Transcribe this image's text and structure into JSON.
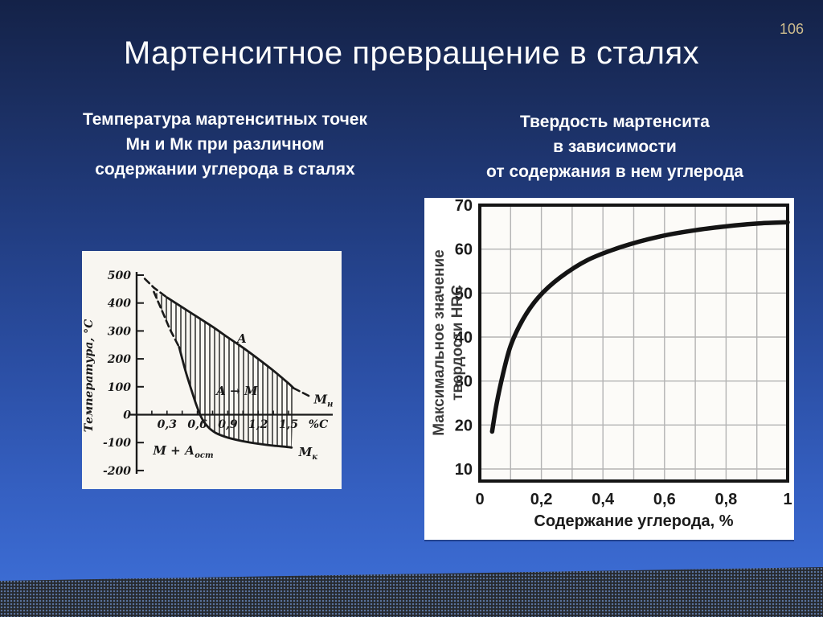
{
  "slide": {
    "title": "Мартенситное превращение в сталях",
    "page_number": "106"
  },
  "captions": {
    "left": [
      "Температура мартенситных точек",
      "Мн и Мк при различном",
      "содержании углерода в сталях"
    ],
    "right": [
      "Твердость мартенсита",
      "в зависимости",
      "от содержания в нем углерода"
    ]
  },
  "colors": {
    "background_top": "#142248",
    "background_bottom": "#3f71d9",
    "band": "#26292e",
    "band_dot": "#6482b4",
    "page_number": "#cfbd8e",
    "text": "#ffffff",
    "ink": "#1a1a1a",
    "grid": "#b3b3b3",
    "label_gray": "#3c3c3c"
  },
  "chart_data": [
    {
      "type": "line",
      "title": "Температура мартенситных точек Мн и Мк при различном содержании углерода в сталях",
      "style": "scanned hand-drawn figure, hatched region between curves",
      "xlabel": "%С",
      "ylabel": "Температура, °С",
      "xlim": [
        0,
        1.9
      ],
      "ylim": [
        -200,
        500
      ],
      "x_ticks": [
        0.3,
        0.6,
        0.9,
        1.2,
        1.5
      ],
      "x_tick_labels": [
        "0,3",
        "0,6",
        "0,9",
        "1,2",
        "1,5"
      ],
      "y_ticks": [
        500,
        400,
        300,
        200,
        100,
        0,
        -100,
        -200
      ],
      "grid": false,
      "series": [
        {
          "name": "Мн",
          "label": {
            "text": "М",
            "sub": "н",
            "x": 1.75,
            "y": 40
          },
          "dashed_start": [
            [
              0.08,
              487
            ],
            [
              0.17,
              455
            ],
            [
              0.3,
              420
            ]
          ],
          "solid": [
            [
              0.3,
              420
            ],
            [
              0.45,
              385
            ],
            [
              0.6,
              350
            ],
            [
              0.75,
              315
            ],
            [
              0.9,
              277
            ],
            [
              1.05,
              240
            ],
            [
              1.2,
              200
            ],
            [
              1.35,
              158
            ],
            [
              1.5,
              112
            ],
            [
              1.55,
              95
            ]
          ],
          "dashed_end": [
            [
              1.55,
              95
            ],
            [
              1.73,
              62
            ]
          ]
        },
        {
          "name": "Мк",
          "label": {
            "text": "М",
            "sub": "к",
            "x": 1.6,
            "y": -148
          },
          "dashed_start": [
            [
              0.17,
              440
            ],
            [
              0.25,
              373
            ],
            [
              0.33,
              305
            ],
            [
              0.42,
              242
            ]
          ],
          "solid": [
            [
              0.42,
              242
            ],
            [
              0.48,
              160
            ],
            [
              0.54,
              90
            ],
            [
              0.59,
              35
            ],
            [
              0.64,
              -10
            ],
            [
              0.7,
              -42
            ],
            [
              0.78,
              -65
            ],
            [
              0.9,
              -82
            ],
            [
              1.05,
              -95
            ],
            [
              1.2,
              -104
            ],
            [
              1.35,
              -111
            ],
            [
              1.5,
              -116
            ],
            [
              1.53,
              -118
            ]
          ],
          "dashed_end": []
        }
      ],
      "region_labels": [
        {
          "text": "А",
          "x": 1.04,
          "y": 258
        },
        {
          "text": "А → М",
          "x": 0.99,
          "y": 71
        },
        {
          "text": "М + А",
          "sub": "ост",
          "x": 0.46,
          "y": -143
        }
      ],
      "hatched_between": [
        "Мн",
        "Мк"
      ]
    },
    {
      "type": "line",
      "title": "Твердость мартенсита в зависимости от содержания в нем углерода",
      "xlabel": "Содержание углерода, %",
      "ylabel_lines": [
        "Максимальное значение",
        "твердости HRC"
      ],
      "xlim": [
        0,
        1
      ],
      "ylim": [
        7,
        70
      ],
      "x_ticks": [
        0,
        0.2,
        0.4,
        0.6,
        0.8,
        1
      ],
      "x_tick_labels": [
        "0",
        "0,2",
        "0,4",
        "0,6",
        "0,8",
        "1"
      ],
      "y_ticks": [
        10,
        20,
        30,
        40,
        50,
        60,
        70
      ],
      "grid": true,
      "grid_step_x": 0.1,
      "grid_step_y": 10,
      "series": [
        {
          "name": "Максимальная твердость HRC",
          "points": [
            [
              0.04,
              18.5
            ],
            [
              0.055,
              25
            ],
            [
              0.075,
              31.5
            ],
            [
              0.1,
              38
            ],
            [
              0.14,
              44
            ],
            [
              0.19,
              49
            ],
            [
              0.26,
              53.5
            ],
            [
              0.35,
              57.5
            ],
            [
              0.46,
              60.5
            ],
            [
              0.58,
              62.8
            ],
            [
              0.7,
              64.3
            ],
            [
              0.83,
              65.4
            ],
            [
              0.92,
              65.9
            ],
            [
              1.0,
              66.1
            ]
          ]
        }
      ]
    }
  ]
}
